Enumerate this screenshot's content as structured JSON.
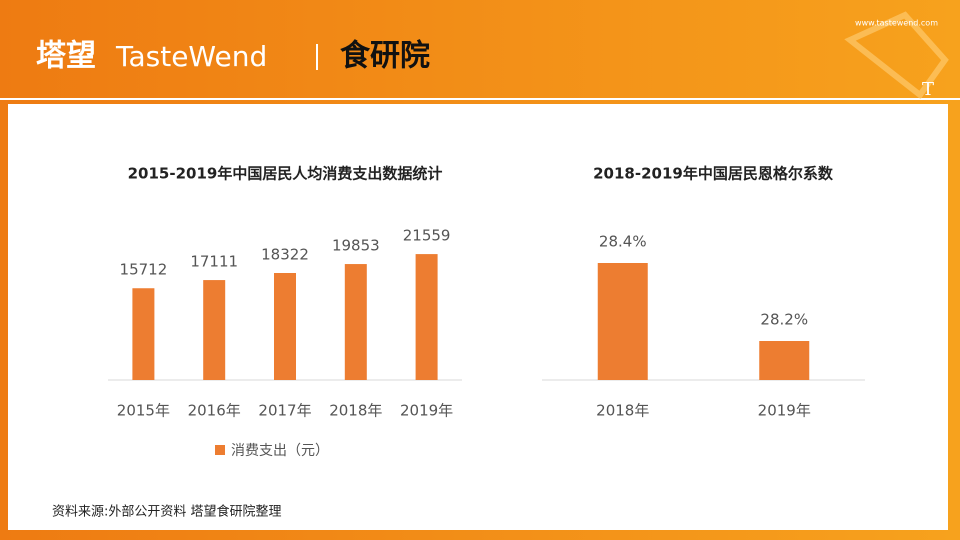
{
  "header": {
    "brand": "塔望",
    "brand_en": "TasteWend",
    "institute": "食研院",
    "url": "www.tastewend.com",
    "logo_letter": "T"
  },
  "footer": {
    "source": "资料来源:外部公开资料 塔望食研院整理"
  },
  "chart_data": [
    {
      "type": "bar",
      "title": "2015-2019年中国居民人均消费支出数据统计",
      "categories": [
        "2015年",
        "2016年",
        "2017年",
        "2018年",
        "2019年"
      ],
      "series": [
        {
          "name": "消费支出（元）",
          "color": "#ed7d31",
          "values": [
            15712,
            17111,
            18322,
            19853,
            21559
          ]
        }
      ],
      "ylim": [
        0,
        25000
      ],
      "legend": "bottom"
    },
    {
      "type": "bar",
      "title": "2018-2019年中国居民恩格尔系数",
      "categories": [
        "2018年",
        "2019年"
      ],
      "values": [
        28.4,
        28.2
      ],
      "value_labels": [
        "28.4%",
        "28.2%"
      ],
      "color": "#ed7d31",
      "ylim": [
        28.1,
        28.4
      ]
    }
  ]
}
